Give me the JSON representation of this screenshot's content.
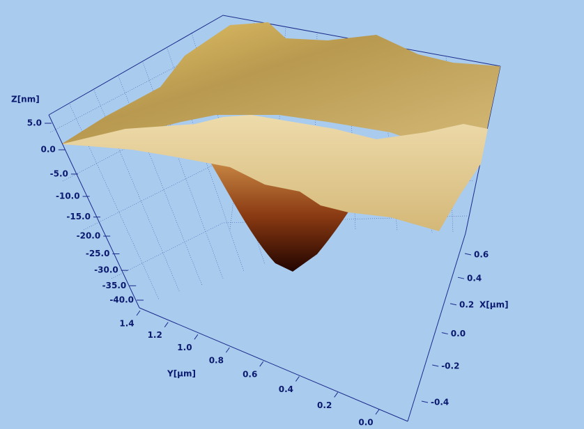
{
  "chart_data": {
    "type": "surface3d",
    "zlabel": "Z[nm]",
    "xlabel": "X[µm]",
    "ylabel": "Y[µm]",
    "zlim": [
      -40,
      5
    ],
    "zticks": [
      {
        "value": 5,
        "label": "5.0"
      },
      {
        "value": 0,
        "label": "0.0"
      },
      {
        "value": -5,
        "label": "-5.0"
      },
      {
        "value": -10,
        "label": "-10.0"
      },
      {
        "value": -15,
        "label": "-15.0"
      },
      {
        "value": -20,
        "label": "-20.0"
      },
      {
        "value": -25,
        "label": "-25.0"
      },
      {
        "value": -30,
        "label": "-30.0"
      },
      {
        "value": -35,
        "label": "-35.0"
      },
      {
        "value": -40,
        "label": "-40.0"
      }
    ],
    "ylim": [
      0,
      1.4
    ],
    "yticks": [
      1.4,
      1.2,
      {
        "value": 1,
        "label": "1.0"
      },
      0.8,
      0.6,
      0.4,
      0.2,
      {
        "value": 0,
        "label": "0.0"
      }
    ],
    "xlim": [
      -0.4,
      0.6
    ],
    "xticks": [
      0.6,
      0.4,
      0.2,
      {
        "value": 0,
        "label": "0.0"
      },
      -0.2,
      -0.4
    ]
  }
}
